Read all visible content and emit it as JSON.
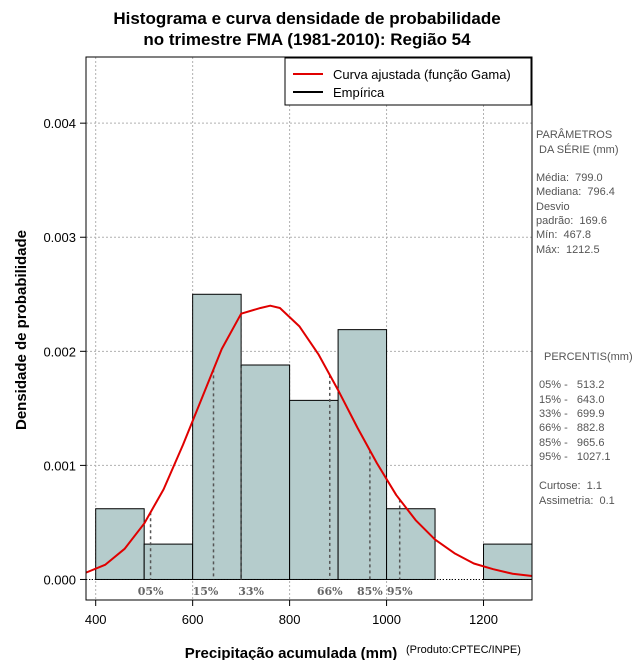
{
  "chart_data": {
    "type": "histogram",
    "title_lines": [
      "Histograma e curva densidade de probabilidade",
      "no trimestre FMA (1981-2010): Região 54"
    ],
    "xlabel": "Precipitação acumulada (mm)",
    "ylabel": "Densidade de probabilidade",
    "credit": "(Produto:CPTEC/INPE)",
    "xlim": [
      380,
      1300
    ],
    "ylim": [
      -0.00018,
      0.00458
    ],
    "x_ticks": [
      400,
      600,
      800,
      1000,
      1200
    ],
    "x_tick_labels": [
      "400",
      "600",
      "800",
      "1000",
      "1200"
    ],
    "y_ticks": [
      0.0,
      0.001,
      0.002,
      0.003,
      0.004
    ],
    "y_tick_labels": [
      "0.000",
      "0.001",
      "0.002",
      "0.003",
      "0.004"
    ],
    "grid": true,
    "bins": [
      {
        "x0": 400,
        "x1": 500,
        "density": 0.00062
      },
      {
        "x0": 500,
        "x1": 600,
        "density": 0.00031
      },
      {
        "x0": 600,
        "x1": 700,
        "density": 0.0025
      },
      {
        "x0": 700,
        "x1": 800,
        "density": 0.00188
      },
      {
        "x0": 800,
        "x1": 900,
        "density": 0.00157
      },
      {
        "x0": 900,
        "x1": 1000,
        "density": 0.00219
      },
      {
        "x0": 1000,
        "x1": 1100,
        "density": 0.00062
      },
      {
        "x0": 1100,
        "x1": 1200,
        "density": 0.0
      },
      {
        "x0": 1200,
        "x1": 1300,
        "density": 0.00031
      }
    ],
    "fitted_curve": {
      "name": "Curva ajustada (função Gama)",
      "color": "#e00000",
      "x": [
        380,
        420,
        460,
        500,
        540,
        580,
        620,
        660,
        700,
        740,
        760,
        780,
        820,
        860,
        900,
        940,
        980,
        1020,
        1060,
        1100,
        1140,
        1180,
        1220,
        1260,
        1300
      ],
      "y": [
        6e-05,
        0.00013,
        0.00027,
        0.00049,
        0.00079,
        0.00118,
        0.0016,
        0.00202,
        0.00233,
        0.00238,
        0.0024,
        0.00238,
        0.00222,
        0.00197,
        0.00166,
        0.00133,
        0.00102,
        0.00074,
        0.00052,
        0.00035,
        0.00023,
        0.00014,
        9e-05,
        5e-05,
        3e-05
      ]
    },
    "empirical_legend": "Empírica",
    "percentiles": [
      {
        "label": "05%",
        "value": 513.2
      },
      {
        "label": "15%",
        "value": 643.0
      },
      {
        "label": "33%",
        "value": 699.9
      },
      {
        "label": "66%",
        "value": 882.8
      },
      {
        "label": "85%",
        "value": 965.6
      },
      {
        "label": "95%",
        "value": 1027.1
      }
    ],
    "bar_fill": "#b5cccc",
    "bar_edge": "#000000",
    "legend_position": "top-right"
  },
  "side_panel": {
    "series_params_title_1": "PARÂMETROS",
    "series_params_title_2": " DA SÉRIE (mm)",
    "series_params": [
      "Média:  799.0",
      "Mediana:  796.4",
      "Desvio",
      "padrão:  169.6",
      "Mín:  467.8",
      "Máx:  1212.5"
    ],
    "percentis_title": "PERCENTIS(mm)",
    "percentis": [
      "05% -   513.2",
      "15% -   643.0",
      "33% -   699.9",
      "66% -   882.8",
      "85% -   965.6",
      "95% -   1027.1"
    ],
    "shape_stats": [
      "Curtose:  1.1",
      "Assimetria:  0.1"
    ]
  }
}
